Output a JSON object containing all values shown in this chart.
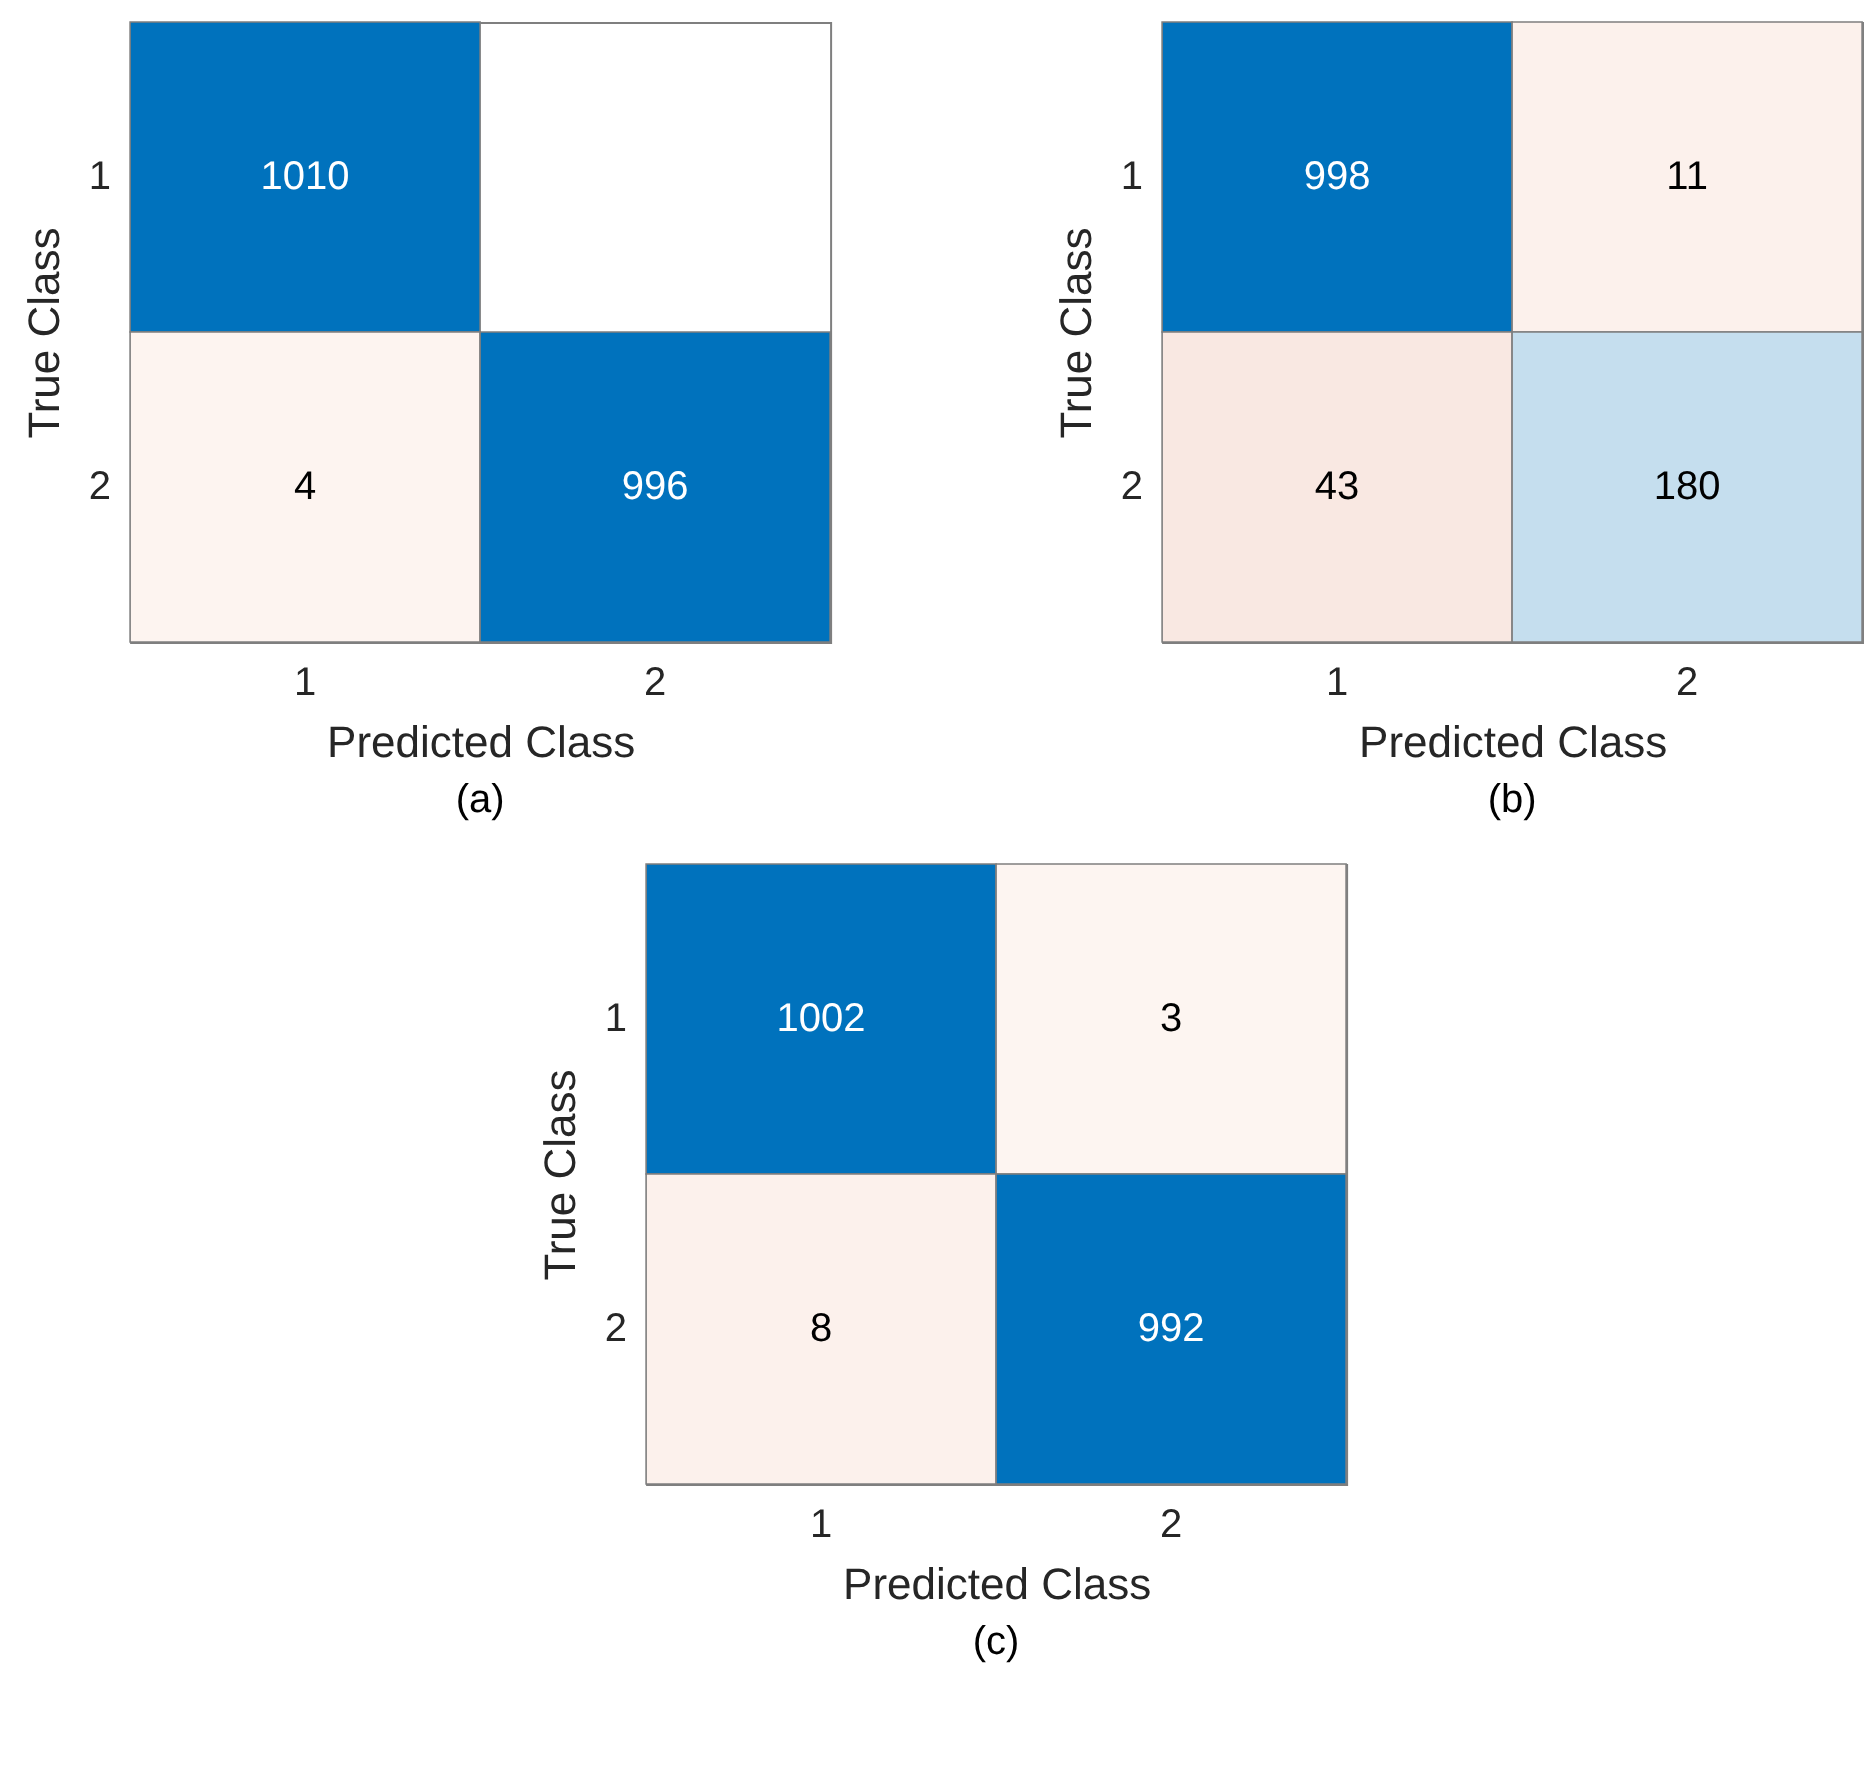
{
  "chart_data": [
    {
      "type": "heatmap",
      "xlabel": "Predicted Class",
      "ylabel": "True Class",
      "categories": [
        "1",
        "2"
      ],
      "y_categories": [
        "1",
        "2"
      ],
      "cells": [
        [
          1010,
          null
        ],
        [
          4,
          996
        ]
      ],
      "colors": [
        [
          "#0072bd",
          null
        ],
        [
          "#fdf4f0",
          "#0072bd"
        ]
      ],
      "data_labels": true,
      "annotations": [
        "(a)"
      ]
    },
    {
      "type": "heatmap",
      "xlabel": "Predicted Class",
      "ylabel": "True Class",
      "categories": [
        "1",
        "2"
      ],
      "y_categories": [
        "1",
        "2"
      ],
      "cells": [
        [
          998,
          11
        ],
        [
          43,
          180
        ]
      ],
      "colors": [
        [
          "#0072bd",
          "#fcf1ec"
        ],
        [
          "#f9e8e2",
          "#c5deee"
        ]
      ],
      "data_labels": true,
      "annotations": [
        "(b)"
      ]
    },
    {
      "type": "heatmap",
      "xlabel": "Predicted Class",
      "ylabel": "True Class",
      "categories": [
        "1",
        "2"
      ],
      "y_categories": [
        "1",
        "2"
      ],
      "cells": [
        [
          1002,
          3
        ],
        [
          8,
          992
        ]
      ],
      "colors": [
        [
          "#0072bd",
          "#fdf5f1"
        ],
        [
          "#fcf1ec",
          "#0072bd"
        ]
      ],
      "data_labels": true,
      "annotations": [
        "(c)"
      ]
    }
  ]
}
